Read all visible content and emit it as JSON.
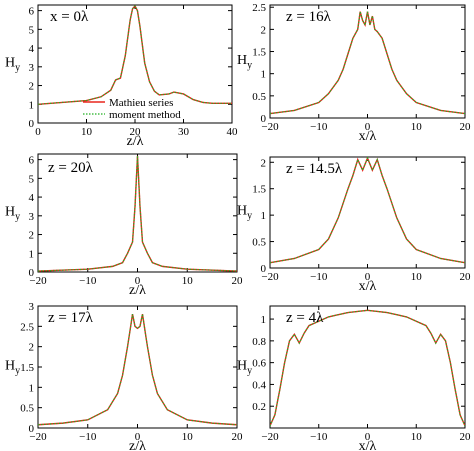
{
  "figure": {
    "ylabel_main": "H",
    "ylabel_sub": "y"
  },
  "legend": [
    {
      "label": "Mathieu series",
      "color": "#e8261d",
      "dash": "solid"
    },
    {
      "label": "moment method",
      "color": "#22b022",
      "dash": "dotted"
    }
  ],
  "chart_data": [
    {
      "id": "p1",
      "type": "line",
      "panel_label": "x = 0λ",
      "xlabel": "z/λ",
      "xlim": [
        0,
        40
      ],
      "ylim": [
        0,
        6.3
      ],
      "xticks": [
        0,
        10,
        20,
        30,
        40
      ],
      "yticks": [
        0,
        1,
        2,
        3,
        4,
        5,
        6
      ],
      "series": [
        {
          "name": "Mathieu series",
          "x": [
            0,
            5,
            10,
            13,
            15,
            16,
            17,
            18,
            19,
            19.5,
            20,
            20.5,
            21,
            22,
            23,
            24,
            25,
            27,
            28,
            30,
            32,
            34,
            36,
            38,
            40
          ],
          "values": [
            1.0,
            1.1,
            1.2,
            1.4,
            1.75,
            2.3,
            2.4,
            3.6,
            5.5,
            6.1,
            6.25,
            6.0,
            5.2,
            3.2,
            2.2,
            1.7,
            1.5,
            1.55,
            1.65,
            1.55,
            1.25,
            1.1,
            1.05,
            1.05,
            1.05
          ]
        },
        {
          "name": "moment method",
          "x": [
            0,
            5,
            10,
            13,
            15,
            16,
            17,
            18,
            19,
            19.5,
            20,
            20.5,
            21,
            22,
            23,
            24,
            25,
            27,
            28,
            30,
            32,
            34,
            36,
            38,
            40
          ],
          "values": [
            1.0,
            1.1,
            1.2,
            1.4,
            1.75,
            2.3,
            2.4,
            3.6,
            5.5,
            6.1,
            6.25,
            6.0,
            5.2,
            3.2,
            2.2,
            1.7,
            1.5,
            1.55,
            1.65,
            1.55,
            1.25,
            1.1,
            1.05,
            1.05,
            1.05
          ]
        }
      ]
    },
    {
      "id": "p2",
      "type": "line",
      "panel_label": "z = 16λ",
      "xlabel": "x/λ",
      "xlim": [
        -20,
        20
      ],
      "ylim": [
        0,
        2.55
      ],
      "xticks": [
        -20,
        -10,
        0,
        10,
        20
      ],
      "yticks": [
        0,
        0.5,
        1,
        1.5,
        2,
        2.5
      ],
      "series": [
        {
          "name": "Mathieu series",
          "x": [
            -20,
            -15,
            -10,
            -8,
            -6,
            -5,
            -4,
            -3,
            -2,
            -1.5,
            -1,
            -0.5,
            0,
            0.5,
            1,
            1.5,
            2,
            3,
            4,
            5,
            6,
            8,
            10,
            15,
            20
          ],
          "values": [
            0.1,
            0.17,
            0.35,
            0.55,
            0.85,
            1.1,
            1.45,
            1.8,
            2.0,
            2.4,
            2.2,
            2.1,
            2.4,
            2.1,
            2.3,
            2.0,
            1.95,
            1.8,
            1.45,
            1.1,
            0.85,
            0.55,
            0.35,
            0.17,
            0.1
          ]
        },
        {
          "name": "moment method",
          "x": [
            -20,
            -15,
            -10,
            -8,
            -6,
            -5,
            -4,
            -3,
            -2,
            -1.5,
            -1,
            -0.5,
            0,
            0.5,
            1,
            1.5,
            2,
            3,
            4,
            5,
            6,
            8,
            10,
            15,
            20
          ],
          "values": [
            0.1,
            0.17,
            0.35,
            0.55,
            0.85,
            1.1,
            1.45,
            1.8,
            2.0,
            2.4,
            2.2,
            2.1,
            2.4,
            2.1,
            2.3,
            2.0,
            1.95,
            1.8,
            1.45,
            1.1,
            0.85,
            0.55,
            0.35,
            0.17,
            0.1
          ]
        }
      ]
    },
    {
      "id": "p3",
      "type": "line",
      "panel_label": "z = 20λ",
      "xlabel": "z/λ",
      "xlim": [
        -20,
        20
      ],
      "ylim": [
        0,
        6.3
      ],
      "xticks": [
        -20,
        -10,
        0,
        10,
        20
      ],
      "yticks": [
        0,
        1,
        2,
        3,
        4,
        5,
        6
      ],
      "series": [
        {
          "name": "Mathieu series",
          "x": [
            -20,
            -10,
            -5,
            -3,
            -2,
            -1,
            -0.5,
            0,
            0.5,
            1,
            2,
            3,
            5,
            10,
            20
          ],
          "values": [
            0.05,
            0.15,
            0.3,
            0.5,
            1.0,
            1.6,
            3.5,
            6.2,
            3.5,
            1.6,
            1.0,
            0.5,
            0.3,
            0.15,
            0.05
          ]
        },
        {
          "name": "moment method",
          "x": [
            -20,
            -10,
            -5,
            -3,
            -2,
            -1,
            -0.5,
            0,
            0.5,
            1,
            2,
            3,
            5,
            10,
            20
          ],
          "values": [
            0.05,
            0.15,
            0.3,
            0.5,
            1.0,
            1.6,
            3.5,
            6.2,
            3.5,
            1.6,
            1.0,
            0.5,
            0.3,
            0.15,
            0.05
          ]
        }
      ]
    },
    {
      "id": "p4",
      "type": "line",
      "panel_label": "z = 14.5λ",
      "xlabel": "x/λ",
      "xlim": [
        -20,
        20
      ],
      "ylim": [
        0,
        2.1
      ],
      "xticks": [
        -20,
        -10,
        0,
        10,
        20
      ],
      "yticks": [
        0,
        0.5,
        1,
        1.5,
        2
      ],
      "series": [
        {
          "name": "Mathieu series",
          "x": [
            -20,
            -15,
            -10,
            -8,
            -6,
            -4,
            -3,
            -2,
            -1,
            0,
            1,
            2,
            3,
            4,
            6,
            8,
            10,
            15,
            20
          ],
          "values": [
            0.1,
            0.18,
            0.35,
            0.55,
            0.95,
            1.5,
            1.75,
            2.05,
            1.85,
            2.08,
            1.85,
            2.05,
            1.75,
            1.5,
            0.95,
            0.55,
            0.35,
            0.18,
            0.1
          ]
        },
        {
          "name": "moment method",
          "x": [
            -20,
            -15,
            -10,
            -8,
            -6,
            -4,
            -3,
            -2,
            -1,
            0,
            1,
            2,
            3,
            4,
            6,
            8,
            10,
            15,
            20
          ],
          "values": [
            0.1,
            0.18,
            0.35,
            0.55,
            0.95,
            1.5,
            1.75,
            2.05,
            1.85,
            2.08,
            1.85,
            2.05,
            1.75,
            1.5,
            0.95,
            0.55,
            0.35,
            0.18,
            0.1
          ]
        }
      ]
    },
    {
      "id": "p5",
      "type": "line",
      "panel_label": "z = 17λ",
      "xlabel": "z/λ",
      "xlim": [
        -20,
        20
      ],
      "ylim": [
        0,
        3.0
      ],
      "xticks": [
        -20,
        -10,
        0,
        10,
        20
      ],
      "yticks": [
        0,
        0.5,
        1,
        1.5,
        2,
        2.5,
        3
      ],
      "series": [
        {
          "name": "Mathieu series",
          "x": [
            -20,
            -15,
            -10,
            -6,
            -4,
            -3,
            -2,
            -1,
            -0.5,
            0,
            0.5,
            1,
            2,
            3,
            4,
            6,
            10,
            15,
            20
          ],
          "values": [
            0.08,
            0.12,
            0.2,
            0.45,
            0.85,
            1.3,
            2.0,
            2.8,
            2.5,
            2.45,
            2.5,
            2.8,
            2.0,
            1.3,
            0.85,
            0.45,
            0.2,
            0.12,
            0.08
          ]
        },
        {
          "name": "moment method",
          "x": [
            -20,
            -15,
            -10,
            -6,
            -4,
            -3,
            -2,
            -1,
            -0.5,
            0,
            0.5,
            1,
            2,
            3,
            4,
            6,
            10,
            15,
            20
          ],
          "values": [
            0.08,
            0.12,
            0.2,
            0.45,
            0.85,
            1.3,
            2.0,
            2.8,
            2.5,
            2.45,
            2.5,
            2.8,
            2.0,
            1.3,
            0.85,
            0.45,
            0.2,
            0.12,
            0.08
          ]
        }
      ]
    },
    {
      "id": "p6",
      "type": "line",
      "panel_label": "z = 4λ",
      "xlabel": "x/λ",
      "xlim": [
        -20,
        20
      ],
      "ylim": [
        0,
        1.12
      ],
      "xticks": [
        -20,
        -10,
        0,
        10,
        20
      ],
      "yticks": [
        0.2,
        0.4,
        0.6,
        0.8,
        1
      ],
      "series": [
        {
          "name": "Mathieu series",
          "x": [
            -20,
            -19,
            -18,
            -17,
            -16,
            -15,
            -14,
            -13,
            -12,
            -10,
            -8,
            -6,
            -4,
            -2,
            0,
            2,
            4,
            6,
            8,
            10,
            12,
            13,
            14,
            15,
            16,
            17,
            18,
            19,
            20
          ],
          "values": [
            0.02,
            0.12,
            0.35,
            0.6,
            0.8,
            0.86,
            0.78,
            0.87,
            0.94,
            0.98,
            1.02,
            1.04,
            1.06,
            1.07,
            1.08,
            1.07,
            1.06,
            1.04,
            1.02,
            0.98,
            0.94,
            0.87,
            0.78,
            0.86,
            0.8,
            0.6,
            0.35,
            0.12,
            0.02
          ]
        },
        {
          "name": "moment method",
          "x": [
            -20,
            -19,
            -18,
            -17,
            -16,
            -15,
            -14,
            -13,
            -12,
            -10,
            -8,
            -6,
            -4,
            -2,
            0,
            2,
            4,
            6,
            8,
            10,
            12,
            13,
            14,
            15,
            16,
            17,
            18,
            19,
            20
          ],
          "values": [
            0.02,
            0.12,
            0.35,
            0.6,
            0.8,
            0.86,
            0.78,
            0.87,
            0.94,
            0.98,
            1.02,
            1.04,
            1.06,
            1.07,
            1.08,
            1.07,
            1.06,
            1.04,
            1.02,
            0.98,
            0.94,
            0.87,
            0.78,
            0.86,
            0.8,
            0.6,
            0.35,
            0.12,
            0.02
          ]
        }
      ]
    }
  ]
}
